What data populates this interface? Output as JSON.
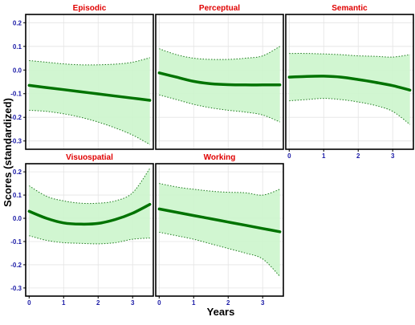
{
  "chart_data": {
    "type": "line",
    "ylabel": "Scores (standardized)",
    "xlabel": "Years",
    "xlim": [
      -0.1,
      3.6
    ],
    "ylim": [
      -0.335,
      0.235
    ],
    "x_ticks": [
      0,
      1,
      2,
      3
    ],
    "y_ticks": [
      0.2,
      0.1,
      0.0,
      -0.1,
      -0.2,
      -0.3
    ],
    "y_tick_labels": [
      "0.2",
      "0.1",
      "0.0",
      "-0.1",
      "-0.2",
      "-0.3"
    ],
    "grid": true,
    "colors": {
      "fit": "#007300",
      "band_fill": "#ccf5cc",
      "band_edge": "#1f7a1f",
      "title": "#e00000",
      "tick": "#1a1aa6"
    },
    "panels": [
      {
        "title": "Episodic",
        "x": [
          0,
          0.5,
          1,
          1.5,
          2,
          2.5,
          3,
          3.5
        ],
        "fit": [
          -0.065,
          -0.074,
          -0.083,
          -0.092,
          -0.101,
          -0.11,
          -0.119,
          -0.128
        ],
        "lower": [
          -0.17,
          -0.175,
          -0.185,
          -0.2,
          -0.22,
          -0.245,
          -0.275,
          -0.315
        ],
        "upper": [
          0.04,
          0.033,
          0.026,
          0.022,
          0.022,
          0.025,
          0.033,
          0.052
        ]
      },
      {
        "title": "Perceptual",
        "x": [
          0,
          0.5,
          1,
          1.5,
          2,
          2.5,
          3,
          3.5
        ],
        "fit": [
          -0.012,
          -0.03,
          -0.048,
          -0.058,
          -0.062,
          -0.063,
          -0.063,
          -0.063
        ],
        "lower": [
          -0.105,
          -0.125,
          -0.145,
          -0.16,
          -0.17,
          -0.178,
          -0.19,
          -0.22
        ],
        "upper": [
          0.09,
          0.065,
          0.05,
          0.045,
          0.045,
          0.05,
          0.06,
          0.1
        ]
      },
      {
        "title": "Semantic",
        "x": [
          0,
          0.5,
          1,
          1.5,
          2,
          2.5,
          3,
          3.5
        ],
        "fit": [
          -0.03,
          -0.027,
          -0.026,
          -0.03,
          -0.04,
          -0.052,
          -0.066,
          -0.085
        ],
        "lower": [
          -0.13,
          -0.125,
          -0.12,
          -0.125,
          -0.135,
          -0.15,
          -0.175,
          -0.23
        ],
        "upper": [
          0.07,
          0.07,
          0.068,
          0.065,
          0.06,
          0.058,
          0.055,
          0.065
        ]
      },
      {
        "title": "Visuospatial",
        "x": [
          0,
          0.5,
          1,
          1.5,
          2,
          2.5,
          3,
          3.5
        ],
        "fit": [
          0.03,
          0.0,
          -0.02,
          -0.025,
          -0.022,
          -0.005,
          0.022,
          0.06
        ],
        "lower": [
          -0.075,
          -0.095,
          -0.105,
          -0.108,
          -0.11,
          -0.105,
          -0.09,
          -0.085
        ],
        "upper": [
          0.14,
          0.095,
          0.075,
          0.065,
          0.065,
          0.075,
          0.11,
          0.215
        ]
      },
      {
        "title": "Working",
        "x": [
          0,
          0.5,
          1,
          1.5,
          2,
          2.5,
          3,
          3.5
        ],
        "fit": [
          0.04,
          0.026,
          0.012,
          -0.002,
          -0.016,
          -0.03,
          -0.044,
          -0.058
        ],
        "lower": [
          -0.06,
          -0.075,
          -0.09,
          -0.11,
          -0.13,
          -0.15,
          -0.175,
          -0.25
        ],
        "upper": [
          0.15,
          0.135,
          0.125,
          0.117,
          0.112,
          0.11,
          0.1,
          0.125
        ]
      }
    ]
  }
}
